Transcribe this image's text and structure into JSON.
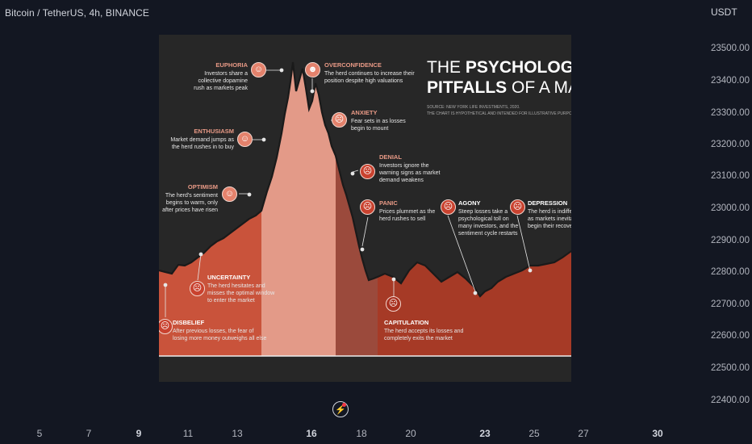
{
  "header": {
    "symbol": "Bitcoin / TetherUS, 4h, BINANCE",
    "currency": "USDT"
  },
  "price_axis": {
    "ticks": [
      "23500.00",
      "23400.00",
      "23300.00",
      "23200.00",
      "23100.00",
      "23000.00",
      "22900.00",
      "22800.00",
      "22700.00",
      "22600.00",
      "22500.00",
      "22400.00"
    ]
  },
  "time_axis": {
    "ticks": [
      {
        "label": "5",
        "major": false
      },
      {
        "label": "7",
        "major": false
      },
      {
        "label": "9",
        "major": true
      },
      {
        "label": "11",
        "major": false
      },
      {
        "label": "13",
        "major": false
      },
      {
        "label": "16",
        "major": true
      },
      {
        "label": "18",
        "major": false
      },
      {
        "label": "20",
        "major": false
      },
      {
        "label": "23",
        "major": true
      },
      {
        "label": "25",
        "major": false
      },
      {
        "label": "27",
        "major": false
      },
      {
        "label": "30",
        "major": true
      }
    ]
  },
  "infographic": {
    "title_thin_1": "THE ",
    "title_bold_1": "PSYCHOLOGICAL",
    "title_bold_2": "PITFALLS",
    "title_thin_2": " OF A MARKET CYC",
    "source": "SOURCE: NEW YORK LIFE INVESTMENTS, 2020.",
    "disclaimer": "THE CHART IS HYPOTHETICAL AND INTENDED FOR ILLUSTRATIVE PURPOSES ONLY.",
    "stages": {
      "euphoria": {
        "title": "EUPHORIA",
        "desc": "Investors share a\ncollective dopamine\nrush as markets peak"
      },
      "overconfidence": {
        "title": "OVERCONFIDENCE",
        "desc": "The herd continues to increase their\nposition despite high valuations"
      },
      "anxiety": {
        "title": "ANXIETY",
        "desc": "Fear sets in as losses\nbegin to mount"
      },
      "enthusiasm": {
        "title": "ENTHUSIASM",
        "desc": "Market demand jumps as\nthe herd rushes in to buy"
      },
      "denial": {
        "title": "DENIAL",
        "desc": "Investors ignore the\nwarning signs as market\ndemand weakens"
      },
      "optimism": {
        "title": "OPTIMISM",
        "desc": "The herd's sentiment\nbegins to warm, only\nafter prices have risen"
      },
      "panic": {
        "title": "PANIC",
        "desc": "Prices plummet as the\nherd rushes to sell"
      },
      "agony": {
        "title": "AGONY",
        "desc": "Steep losses take a\npsychological toll on\nmany investors, and the\nsentiment cycle restarts"
      },
      "depression": {
        "title": "DEPRESSION",
        "desc": "The herd is indifferent\nas markets inevitably\nbegin their recovery"
      },
      "uncertainty": {
        "title": "UNCERTAINTY",
        "desc": "The herd hesitates and\nmisses the optimal window\nto enter the market"
      },
      "disbelief": {
        "title": "DISBELIEF",
        "desc": "After previous losses, the fear of\nlosing more money outweighs all else"
      },
      "capitulation": {
        "title": "CAPITULATION",
        "desc": "The herd accepts its losses and\ncompletely exits the market"
      }
    }
  },
  "icons": {
    "replay": "lightning-icon",
    "faces": [
      "disbelief-face-icon",
      "uncertainty-face-icon",
      "optimism-face-icon",
      "enthusiasm-face-icon",
      "euphoria-face-icon",
      "overconfidence-face-icon",
      "anxiety-face-icon",
      "denial-face-icon",
      "panic-face-icon",
      "capitulation-face-icon",
      "agony-face-icon",
      "depression-face-icon"
    ]
  },
  "colors": {
    "background": "#131722",
    "infographic_bg": "#272727",
    "zone_disbelief": "#c9533b",
    "zone_peak": "#e39a88",
    "zone_decline": "#9b4a3c",
    "zone_recovery": "#a63a26",
    "alert_dot": "#f23645"
  }
}
